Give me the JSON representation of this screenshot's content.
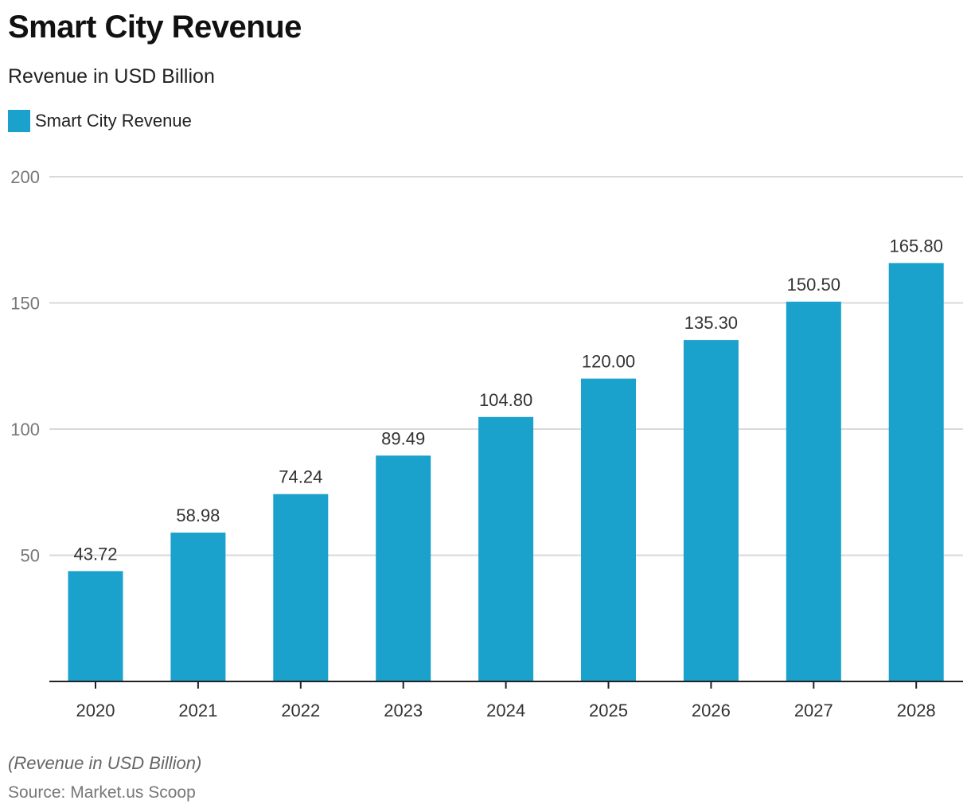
{
  "header": {
    "title": "Smart City Revenue",
    "subtitle": "Revenue in USD Billion"
  },
  "legend": {
    "label": "Smart City Revenue",
    "color": "#1aa1cc"
  },
  "footer": {
    "note": "(Revenue in USD Billion)",
    "source": "Source: Market.us Scoop"
  },
  "chart_data": {
    "type": "bar",
    "title": "Smart City Revenue",
    "subtitle": "Revenue in USD Billion",
    "xlabel": "",
    "ylabel": "",
    "categories": [
      "2020",
      "2021",
      "2022",
      "2023",
      "2024",
      "2025",
      "2026",
      "2027",
      "2028"
    ],
    "series": [
      {
        "name": "Smart City Revenue",
        "color": "#1aa1cc",
        "values": [
          43.72,
          58.98,
          74.24,
          89.49,
          104.8,
          120.0,
          135.3,
          150.5,
          165.8
        ],
        "labels": [
          "43.72",
          "58.98",
          "74.24",
          "89.49",
          "104.80",
          "120.00",
          "135.30",
          "150.50",
          "165.80"
        ]
      }
    ],
    "ylim": [
      0,
      200
    ],
    "yticks": [
      50,
      100,
      150,
      200
    ],
    "ytick_labels": [
      "50",
      "100",
      "150",
      "200"
    ],
    "grid": true,
    "legend_position": "top-left"
  }
}
